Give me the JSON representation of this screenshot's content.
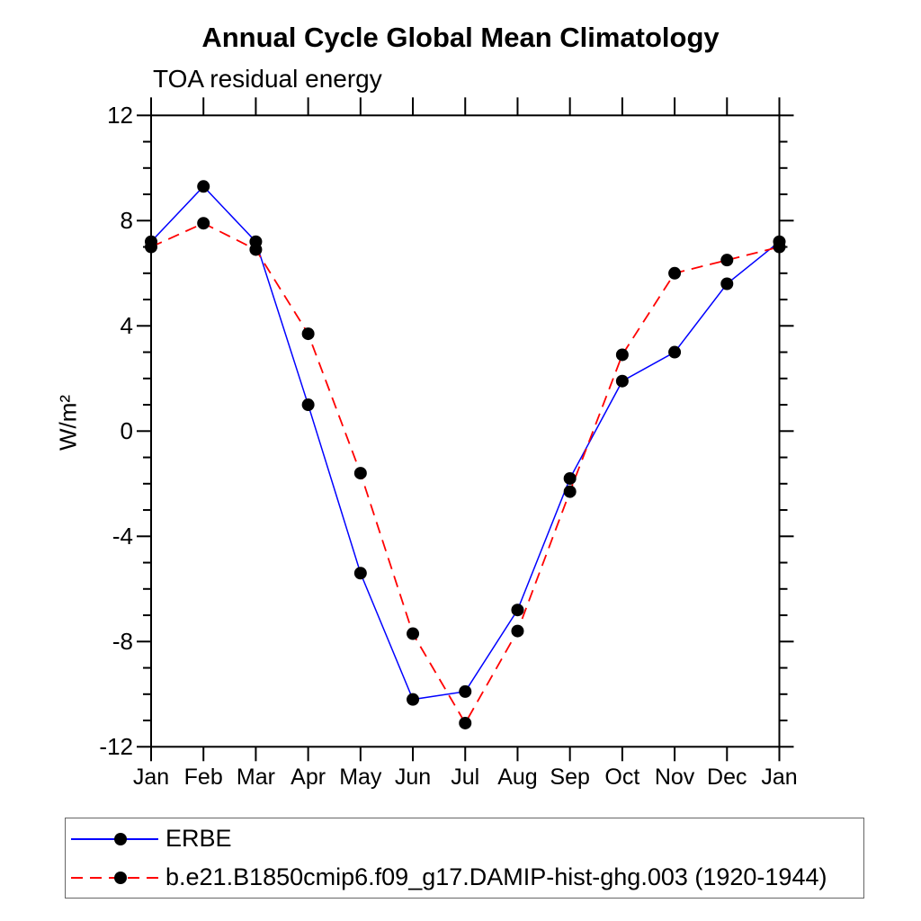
{
  "title": "Annual Cycle Global Mean Climatology",
  "chart_data": {
    "type": "line",
    "title": "Annual Cycle Global Mean Climatology",
    "subtitle": "TOA residual energy",
    "ylabel": "W/m²",
    "xlabel": "",
    "ylim": [
      -12,
      12
    ],
    "ytick_major": [
      12,
      8,
      4,
      0,
      -4,
      -8,
      -12
    ],
    "ytick_minor_step": 1,
    "grid": "off",
    "legend_position": "bottom-left-box",
    "categories": [
      "Jan",
      "Feb",
      "Mar",
      "Apr",
      "May",
      "Jun",
      "Jul",
      "Aug",
      "Sep",
      "Oct",
      "Nov",
      "Dec",
      "Jan"
    ],
    "series": [
      {
        "name": "ERBE",
        "color": "#0000ff",
        "style": "solid",
        "values": [
          7.2,
          9.3,
          7.2,
          1.0,
          -5.4,
          -10.2,
          -9.9,
          -6.8,
          -1.8,
          1.9,
          3.0,
          5.6,
          7.2
        ]
      },
      {
        "name": "b.e21.B1850cmip6.f09_g17.DAMIP-hist-ghg.003 (1920-1944)",
        "color": "#ff0000",
        "style": "dashed",
        "values": [
          7.0,
          7.9,
          6.9,
          3.7,
          -1.6,
          -7.7,
          -11.1,
          -7.6,
          -2.3,
          2.9,
          6.0,
          6.5,
          7.0
        ]
      }
    ],
    "marker": {
      "shape": "circle",
      "color": "#000000",
      "radius": 7
    },
    "axis_color": "#000000"
  }
}
